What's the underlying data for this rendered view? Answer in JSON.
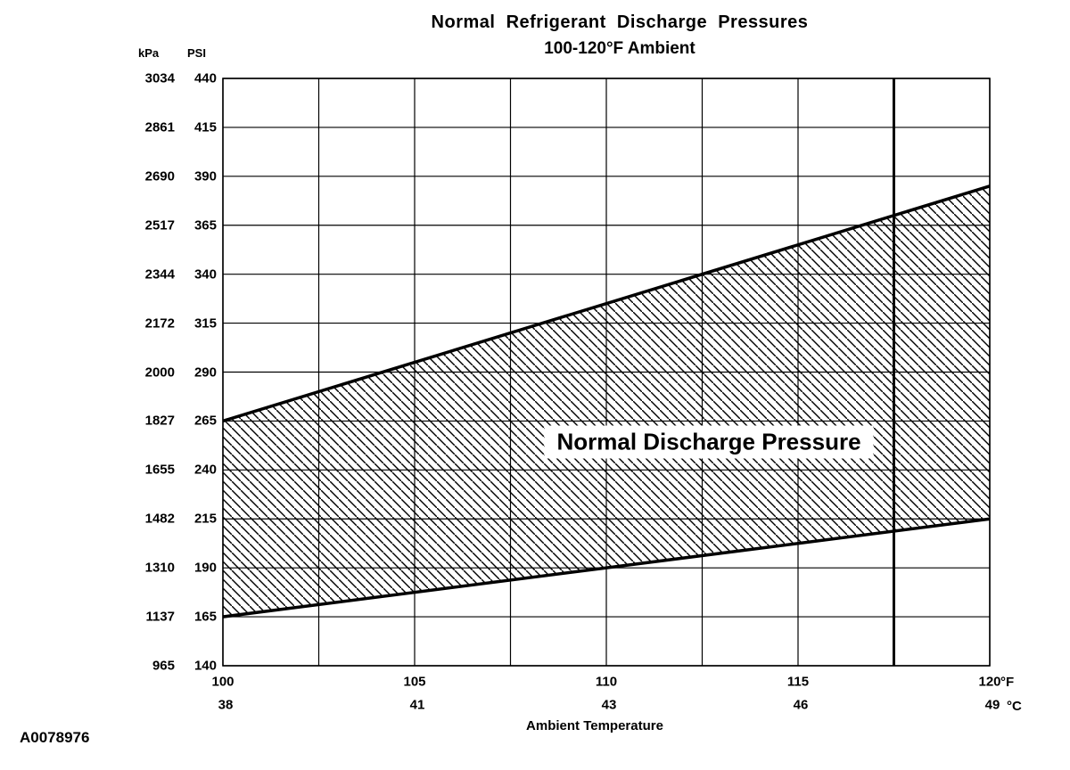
{
  "footer_code": "A0078976",
  "chart_data": {
    "type": "area",
    "title": "Normal  Refrigerant  Discharge  Pressures",
    "subtitle": "100-120°F Ambient",
    "xlabel": "Ambient Temperature",
    "grid": true,
    "hatch": "diagonal",
    "x_axis": {
      "unit_primary": "°F",
      "unit_secondary": "°C",
      "range_f": [
        100,
        120
      ],
      "gridline_step_f": 2.5,
      "thick_gridline_f": 117.5,
      "ticks_f": [
        "100",
        "105",
        "110",
        "115",
        "120"
      ],
      "ticks_c": [
        "38",
        "41",
        "43",
        "46",
        "49"
      ]
    },
    "y_axis": {
      "unit_primary": "PSI",
      "unit_secondary": "kPa",
      "range_psi": [
        140,
        440
      ],
      "ticks_psi": [
        "440",
        "415",
        "390",
        "365",
        "340",
        "315",
        "290",
        "265",
        "240",
        "215",
        "190",
        "165",
        "140"
      ],
      "ticks_kpa": [
        "3034",
        "2861",
        "2690",
        "2517",
        "2344",
        "2172",
        "2000",
        "1827",
        "1655",
        "1482",
        "1310",
        "1137",
        "965"
      ]
    },
    "band": {
      "label": "Normal Discharge Pressure",
      "upper_psi": {
        "x_f": [
          100,
          120
        ],
        "psi": [
          265,
          385
        ]
      },
      "lower_psi": {
        "x_f": [
          100,
          120
        ],
        "psi": [
          165,
          215
        ]
      }
    }
  }
}
